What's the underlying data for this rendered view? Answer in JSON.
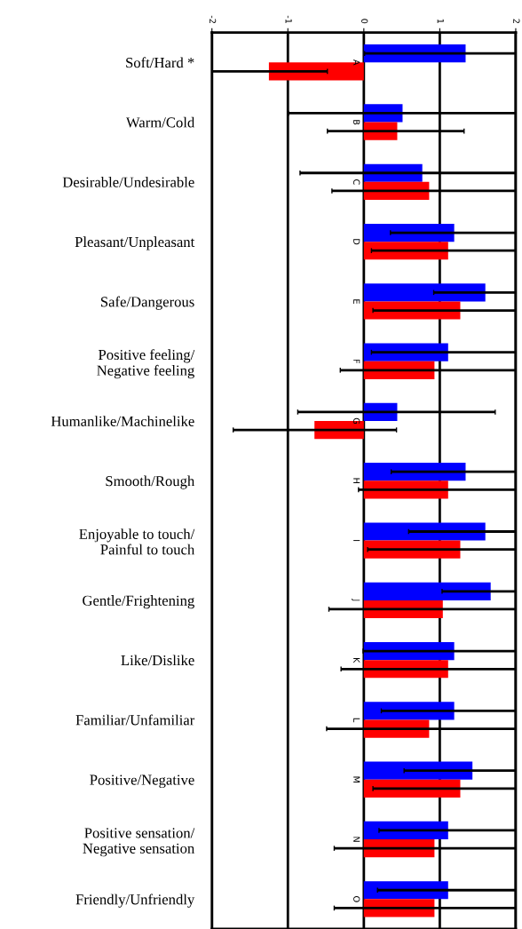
{
  "chart_data": {
    "type": "bar",
    "orientation": "horizontal",
    "categories": [
      "Soft/Hard *",
      "Warm/Cold",
      "Desirable/Undesirable",
      "Pleasant/Unpleasant",
      "Safe/Dangerous",
      "Positive feeling/\nNegative feeling",
      "Humanlike/Machinelike",
      "Smooth/Rough",
      "Enjoyable to touch/\nPainful to touch",
      "Gentle/Frightening",
      "Like/Dislike",
      "Familiar/Unfamiliar",
      "Positive/Negative",
      "Positive sensation/\nNegative sensation",
      "Friendly/Unfriendly"
    ],
    "series": [
      {
        "color": "#0000ff",
        "values": [
          1.34,
          0.51,
          0.77,
          1.19,
          1.6,
          1.11,
          0.44,
          1.34,
          1.6,
          1.67,
          1.19,
          1.19,
          1.43,
          1.11,
          1.11
        ],
        "errors": [
          [
            0.01,
            2
          ],
          [
            -0.99,
            2
          ],
          [
            -0.84,
            2
          ],
          [
            0.35,
            2
          ],
          [
            0.92,
            2
          ],
          [
            0.1,
            2
          ],
          [
            -0.87,
            1.73
          ],
          [
            0.36,
            2
          ],
          [
            0.59,
            2
          ],
          [
            1.03,
            2
          ],
          [
            -0.01,
            2
          ],
          [
            0.23,
            2
          ],
          [
            0.53,
            2
          ],
          [
            0.2,
            2
          ],
          [
            0.18,
            2
          ]
        ]
      },
      {
        "color": "#ff0000",
        "values": [
          -1.25,
          0.44,
          0.86,
          1.11,
          1.27,
          0.93,
          -0.65,
          1.11,
          1.27,
          1.04,
          1.11,
          0.86,
          1.27,
          0.93,
          0.93
        ],
        "errors": [
          [
            -2,
            -0.48
          ],
          [
            -0.48,
            1.32
          ],
          [
            -0.42,
            2
          ],
          [
            0.1,
            2
          ],
          [
            0.12,
            2
          ],
          [
            -0.31,
            2
          ],
          [
            -1.72,
            0.43
          ],
          [
            -0.07,
            2
          ],
          [
            0.05,
            2
          ],
          [
            -0.46,
            2
          ],
          [
            -0.3,
            2
          ],
          [
            -0.49,
            2
          ],
          [
            0.12,
            2
          ],
          [
            -0.39,
            2
          ],
          [
            -0.39,
            2
          ]
        ]
      }
    ],
    "annotations": [
      "A",
      "B",
      "C",
      "D",
      "E",
      "F",
      "G",
      "H",
      "I",
      "J",
      "K",
      "L",
      "M",
      "N",
      "O"
    ],
    "xlim": [
      -2,
      2
    ],
    "xticks": [
      -2,
      -1,
      0,
      1,
      2
    ],
    "grid": "x"
  }
}
